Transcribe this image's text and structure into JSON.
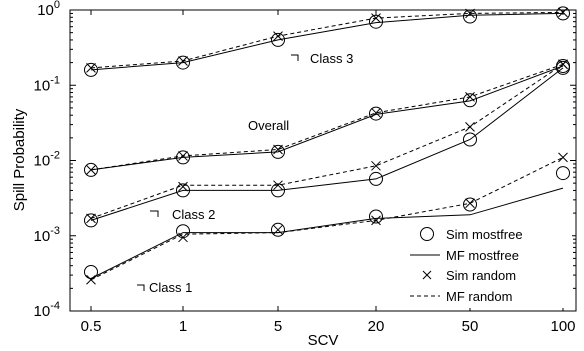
{
  "chart_data": {
    "type": "line",
    "xlabel": "SCV",
    "ylabel": "Spill Probability",
    "yscale": "log",
    "ylim": [
      0.0001,
      1
    ],
    "categories": [
      "0.5",
      "1",
      "5",
      "20",
      "50",
      "100"
    ],
    "y_tick_values": [
      0.0001,
      0.001,
      0.01,
      0.1,
      1
    ],
    "y_tick_exponents": [
      "-4",
      "-3",
      "-2",
      "-1",
      "0"
    ],
    "y_tick_base": "10",
    "grid": false,
    "legend_position": "bottom-right",
    "legend": [
      {
        "label": "Sim mostfree",
        "style": "circle"
      },
      {
        "label": "MF mostfree",
        "style": "solid"
      },
      {
        "label": "Sim random",
        "style": "cross"
      },
      {
        "label": "MF random",
        "style": "dashed"
      }
    ],
    "annotations": [
      "Class 3",
      "Overall",
      "Class 2",
      "Class 1"
    ],
    "groups": [
      {
        "label": "Class 3",
        "sim_mostfree": [
          0.16,
          0.2,
          0.4,
          0.7,
          0.82,
          0.9
        ],
        "mf_mostfree": [
          0.16,
          0.2,
          0.4,
          0.68,
          0.85,
          0.9
        ],
        "sim_random": [
          0.17,
          0.21,
          0.45,
          0.78,
          0.9,
          0.93
        ],
        "mf_random": [
          0.17,
          0.21,
          0.45,
          0.78,
          0.9,
          0.93
        ]
      },
      {
        "label": "Overall",
        "sim_mostfree": [
          0.0075,
          0.011,
          0.013,
          0.042,
          0.063,
          0.18
        ],
        "mf_mostfree": [
          0.0075,
          0.011,
          0.013,
          0.041,
          0.062,
          0.18
        ],
        "sim_random": [
          0.0075,
          0.0115,
          0.014,
          0.043,
          0.07,
          0.19
        ],
        "mf_random": [
          0.0075,
          0.0115,
          0.014,
          0.043,
          0.07,
          0.19
        ]
      },
      {
        "label": "Class 2",
        "sim_mostfree": [
          0.0016,
          0.004,
          0.004,
          0.0057,
          0.019,
          0.17
        ],
        "mf_mostfree": [
          0.0016,
          0.004,
          0.004,
          0.0057,
          0.019,
          0.17
        ],
        "sim_random": [
          0.0017,
          0.0045,
          0.0047,
          0.0085,
          0.028,
          0.19
        ],
        "mf_random": [
          0.0017,
          0.0047,
          0.0047,
          0.0085,
          0.028,
          0.19
        ]
      },
      {
        "label": "Class 1",
        "sim_mostfree": [
          0.00033,
          0.00115,
          0.0012,
          0.0018,
          0.0026,
          0.0068
        ],
        "mf_mostfree": [
          0.00027,
          0.0011,
          0.0011,
          0.0017,
          0.0019,
          0.0043
        ],
        "sim_random": [
          0.00026,
          0.00095,
          0.0012,
          0.0016,
          0.0027,
          0.011
        ],
        "mf_random": [
          0.00026,
          0.00105,
          0.0011,
          0.0016,
          0.0027,
          0.011
        ]
      }
    ]
  }
}
